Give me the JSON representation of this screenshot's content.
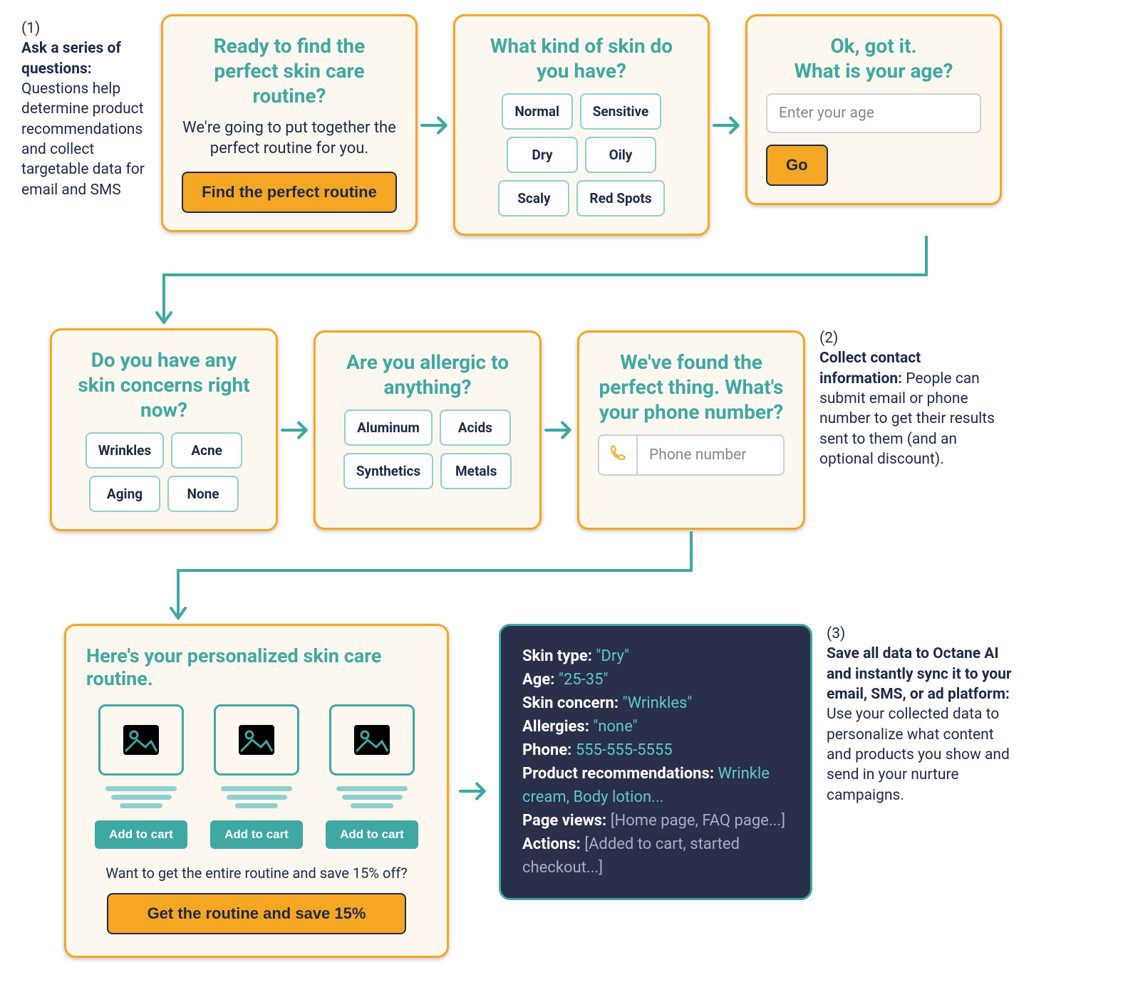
{
  "colors": {
    "card_bg": "#fdf8ef",
    "card_border": "#f5a623",
    "teal": "#3fa8a3",
    "teal_light": "#8fd0cc",
    "navy": "#1e2a4a",
    "orange": "#f5a623",
    "data_bg": "#2a2f4a",
    "grey_text": "#a8aec2",
    "white": "#ffffff"
  },
  "row1": {
    "annotation": {
      "num": "(1)",
      "bold": "Ask a series of questions:",
      "body": "Questions help determine product recommendations and collect targetable data for email and SMS"
    },
    "card1": {
      "title": "Ready to find the perfect skin care routine?",
      "sub": "We're going to put together the perfect routine for you.",
      "cta": "Find the perfect routine"
    },
    "card2": {
      "title": "What kind of skin do you have?",
      "options": [
        "Normal",
        "Sensitive",
        "Dry",
        "Oily",
        "Scaly",
        "Red Spots"
      ]
    },
    "card3": {
      "title_line1": "Ok, got it.",
      "title_line2": "What is your age?",
      "placeholder": "Enter your age",
      "cta": "Go"
    }
  },
  "row2": {
    "card4": {
      "title": "Do you have any skin concerns right now?",
      "options": [
        "Wrinkles",
        "Acne",
        "Aging",
        "None"
      ]
    },
    "card5": {
      "title": "Are you allergic to anything?",
      "options": [
        "Aluminum",
        "Acids",
        "Synthetics",
        "Metals"
      ]
    },
    "card6": {
      "title": "We've found the perfect thing. What's your phone number?",
      "placeholder": "Phone number"
    },
    "annotation": {
      "num": "(2)",
      "bold": "Collect contact information:",
      "body": "People can submit email or phone number to get their results sent to them (and an optional discount)."
    }
  },
  "row3": {
    "results": {
      "title": "Here's your personalized skin care routine.",
      "add_to_cart": "Add to cart",
      "discount_q": "Want to get the entire routine and save 15% off?",
      "cta": "Get the routine and save 15%"
    },
    "data": {
      "items": [
        {
          "label": "Skin type:",
          "value": "\"Dry\"",
          "style": "teal"
        },
        {
          "label": "Age:",
          "value": "\"25-35\"",
          "style": "teal"
        },
        {
          "label": "Skin concern:",
          "value": "\"Wrinkles\"",
          "style": "teal"
        },
        {
          "label": "Allergies:",
          "value": "\"none\"",
          "style": "teal"
        },
        {
          "label": "Phone:",
          "value": "555-555-5555",
          "style": "teal"
        },
        {
          "label": "Product recommendations:",
          "value": "Wrinkle cream, Body lotion...",
          "style": "teal"
        },
        {
          "label": "Page views:",
          "value": "[Home page, FAQ page...]",
          "style": "grey"
        },
        {
          "label": "Actions:",
          "value": "[Added to cart, started checkout...]",
          "style": "grey"
        }
      ]
    },
    "annotation": {
      "num": "(3)",
      "bold": "Save all data to Octane AI and instantly sync it to your email, SMS, or ad platform:",
      "body": "Use your collected data to personalize what content and products you show and send in your nurture campaigns."
    }
  }
}
